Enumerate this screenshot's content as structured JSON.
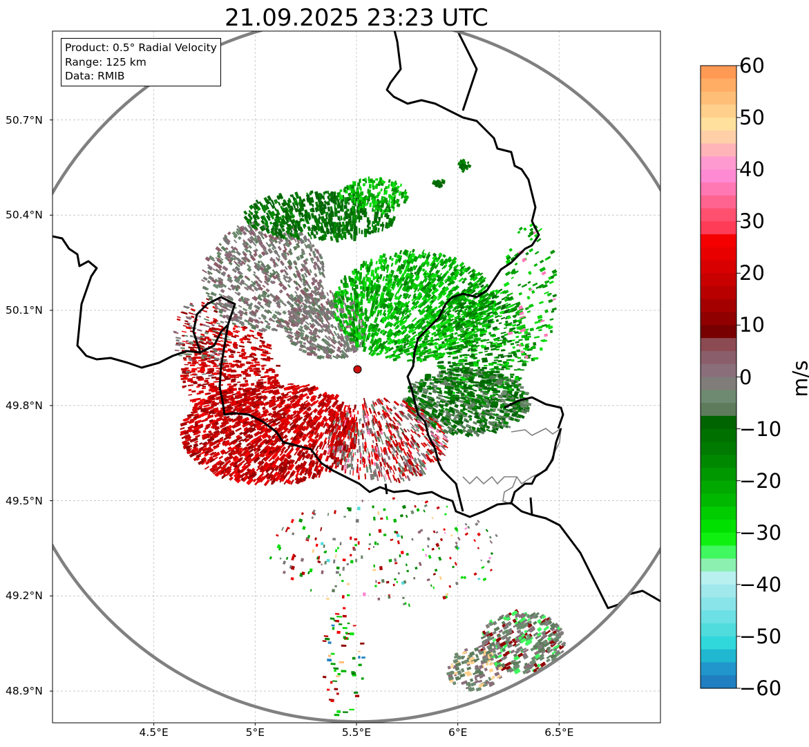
{
  "title": "21.09.2025 23:23 UTC",
  "info": {
    "product": "Product: 0.5° Radial Velocity",
    "range": "Range: 125 km",
    "data": "Data: RMIB"
  },
  "axes": {
    "lon_min": 4.0,
    "lon_max": 7.0,
    "lat_min": 48.8,
    "lat_max": 50.98,
    "lon_ticks": [
      {
        "value": 4.5,
        "label": "4.5°E"
      },
      {
        "value": 5.0,
        "label": "5°E"
      },
      {
        "value": 5.5,
        "label": "5.5°E"
      },
      {
        "value": 6.0,
        "label": "6°E"
      },
      {
        "value": 6.5,
        "label": "6.5°E"
      }
    ],
    "lat_ticks": [
      {
        "value": 50.7,
        "label": "50.7°N"
      },
      {
        "value": 50.4,
        "label": "50.4°N"
      },
      {
        "value": 50.1,
        "label": "50.1°N"
      },
      {
        "value": 49.8,
        "label": "49.8°N"
      },
      {
        "value": 49.5,
        "label": "49.5°N"
      },
      {
        "value": 49.2,
        "label": "49.2°N"
      },
      {
        "value": 48.9,
        "label": "48.9°N"
      }
    ],
    "grid": true
  },
  "radar": {
    "lon": 5.505,
    "lat": 49.914,
    "range_km": 125
  },
  "colorbar": {
    "label": "m/s",
    "min": -60,
    "max": 60,
    "ticks": [
      {
        "value": 60,
        "label": "60"
      },
      {
        "value": 50,
        "label": "50"
      },
      {
        "value": 40,
        "label": "40"
      },
      {
        "value": 30,
        "label": "30"
      },
      {
        "value": 20,
        "label": "20"
      },
      {
        "value": 10,
        "label": "10"
      },
      {
        "value": 0,
        "label": "0"
      },
      {
        "value": -10,
        "label": "−10"
      },
      {
        "value": -20,
        "label": "−20"
      },
      {
        "value": -30,
        "label": "−30"
      },
      {
        "value": -40,
        "label": "−40"
      },
      {
        "value": -50,
        "label": "−50"
      },
      {
        "value": -60,
        "label": "−60"
      }
    ],
    "colors_from_top": [
      "#ff9a55",
      "#ffac65",
      "#ffbe78",
      "#ffd08b",
      "#ffe09c",
      "#ffd0a8",
      "#ffb4b8",
      "#ff9ad0",
      "#ff8ad4",
      "#ff78b4",
      "#ff6490",
      "#ff5070",
      "#ff3c58",
      "#f50000",
      "#e80000",
      "#d80000",
      "#c80000",
      "#b80000",
      "#a40000",
      "#900000",
      "#780000",
      "#8c4a52",
      "#8a5e6a",
      "#8a6e7a",
      "#7f7c7a",
      "#6e8a70",
      "#5e7c5c",
      "#006400",
      "#007000",
      "#007a00",
      "#008800",
      "#009800",
      "#00a800",
      "#00b800",
      "#00cc00",
      "#00e000",
      "#10f010",
      "#40f860",
      "#8cf0b0",
      "#b8f0f0",
      "#a0e8ec",
      "#88e4e8",
      "#6ce0e4",
      "#50dcdc",
      "#30d8dc",
      "#20b8d0",
      "#2096cc",
      "#1f7fc0"
    ]
  },
  "colors": {
    "border": "#000000",
    "region_border": "#808080",
    "range_ring": "#808080",
    "grid": "#c0c0c0",
    "radar_marker": "#cc1010"
  }
}
